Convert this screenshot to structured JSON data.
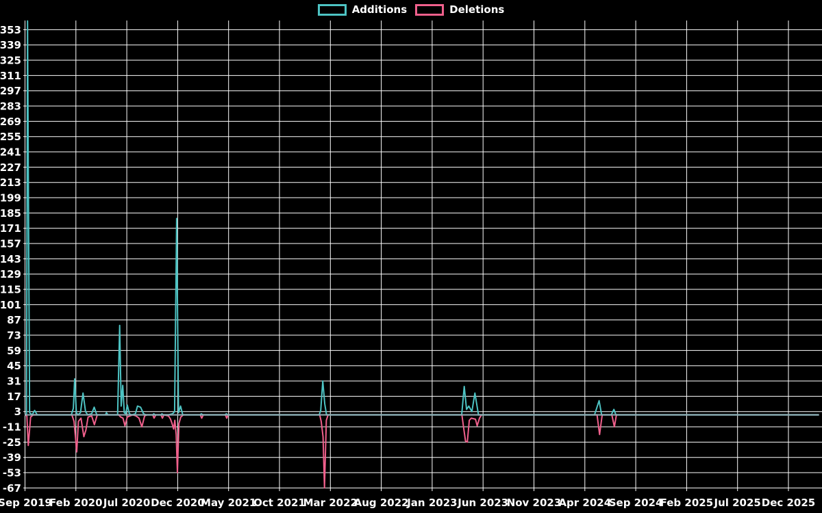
{
  "page": {
    "background": "#000000"
  },
  "legend": {
    "items": [
      {
        "label": "Additions",
        "color": "#4dc3c3"
      },
      {
        "label": "Deletions",
        "color": "#f0608c"
      }
    ]
  },
  "chart_data": {
    "type": "line",
    "title": "",
    "legend_position": "top-center",
    "grid": true,
    "colors": {
      "background": "#000000",
      "grid": "#ffffff",
      "text": "#ffffff",
      "additions": "#4dc3c3",
      "deletions": "#f0608c",
      "zero_line": "#96adb6"
    },
    "x_axis": {
      "unit": "months since Sep 2019",
      "range": [
        0,
        78
      ],
      "ticks": [
        {
          "m": 0,
          "label": "Sep 2019"
        },
        {
          "m": 5,
          "label": "Feb 2020"
        },
        {
          "m": 10,
          "label": "Jul 2020"
        },
        {
          "m": 15,
          "label": "Dec 2020"
        },
        {
          "m": 20,
          "label": "May 2021"
        },
        {
          "m": 25,
          "label": "Oct 2021"
        },
        {
          "m": 30,
          "label": "Mar 2022"
        },
        {
          "m": 35,
          "label": "Aug 2022"
        },
        {
          "m": 40,
          "label": "Jan 2023"
        },
        {
          "m": 45,
          "label": "Jun 2023"
        },
        {
          "m": 50,
          "label": "Nov 2023"
        },
        {
          "m": 55,
          "label": "Apr 2024"
        },
        {
          "m": 60,
          "label": "Sep 2024"
        },
        {
          "m": 65,
          "label": "Feb 2025"
        },
        {
          "m": 70,
          "label": "Jul 2025"
        },
        {
          "m": 75,
          "label": "Dec 2025"
        }
      ]
    },
    "y_axis": {
      "min": -67,
      "max": 353,
      "tick_step": 14,
      "ticks": [
        353,
        339,
        325,
        311,
        297,
        283,
        269,
        255,
        241,
        227,
        213,
        199,
        185,
        171,
        157,
        143,
        129,
        115,
        101,
        87,
        73,
        59,
        45,
        31,
        17,
        3,
        -11,
        -25,
        -39,
        -53,
        -67
      ]
    },
    "series": [
      {
        "name": "Additions",
        "color": "#4dc3c3",
        "points": [
          [
            0,
            0
          ],
          [
            0.15,
            1
          ],
          [
            0.25,
            361
          ],
          [
            0.45,
            2
          ],
          [
            0.7,
            0
          ],
          [
            0.95,
            4
          ],
          [
            1.2,
            0
          ],
          [
            4.55,
            0
          ],
          [
            4.75,
            6
          ],
          [
            4.88,
            33
          ],
          [
            5.05,
            2
          ],
          [
            5.2,
            0
          ],
          [
            5.45,
            2
          ],
          [
            5.7,
            20
          ],
          [
            5.95,
            3
          ],
          [
            6.15,
            0
          ],
          [
            6.55,
            1
          ],
          [
            6.8,
            7
          ],
          [
            7.05,
            0
          ],
          [
            7.9,
            0
          ],
          [
            8.0,
            2
          ],
          [
            8.15,
            0
          ],
          [
            9.1,
            0
          ],
          [
            9.3,
            82
          ],
          [
            9.45,
            8
          ],
          [
            9.6,
            27
          ],
          [
            9.75,
            2
          ],
          [
            9.9,
            1
          ],
          [
            10.05,
            9
          ],
          [
            10.25,
            1
          ],
          [
            10.5,
            0
          ],
          [
            10.85,
            1
          ],
          [
            11.05,
            8
          ],
          [
            11.35,
            7
          ],
          [
            11.65,
            1
          ],
          [
            11.9,
            0
          ],
          [
            12.55,
            0
          ],
          [
            12.65,
            1
          ],
          [
            12.8,
            0
          ],
          [
            13.35,
            0
          ],
          [
            13.45,
            1
          ],
          [
            13.6,
            0
          ],
          [
            14.1,
            0
          ],
          [
            14.5,
            1
          ],
          [
            14.7,
            3
          ],
          [
            14.9,
            180
          ],
          [
            15.08,
            2
          ],
          [
            15.28,
            8
          ],
          [
            15.5,
            0
          ],
          [
            17.2,
            0
          ],
          [
            17.32,
            1
          ],
          [
            17.48,
            0
          ],
          [
            19.65,
            0
          ],
          [
            19.78,
            1
          ],
          [
            19.92,
            0
          ],
          [
            28.9,
            0
          ],
          [
            29.05,
            4
          ],
          [
            29.25,
            31
          ],
          [
            29.45,
            10
          ],
          [
            29.62,
            0
          ],
          [
            42.9,
            0
          ],
          [
            43.15,
            26
          ],
          [
            43.38,
            5
          ],
          [
            43.6,
            8
          ],
          [
            43.9,
            3
          ],
          [
            44.2,
            20
          ],
          [
            44.55,
            0
          ],
          [
            55.95,
            0
          ],
          [
            56.4,
            13
          ],
          [
            56.65,
            0
          ],
          [
            57.6,
            0
          ],
          [
            57.85,
            5
          ],
          [
            58.05,
            0
          ],
          [
            78,
            0
          ]
        ]
      },
      {
        "name": "Deletions",
        "color": "#f0608c",
        "points": [
          [
            0,
            0
          ],
          [
            0.18,
            -1
          ],
          [
            0.32,
            -28
          ],
          [
            0.55,
            -2
          ],
          [
            0.8,
            0
          ],
          [
            4.6,
            0
          ],
          [
            4.82,
            -6
          ],
          [
            4.95,
            -20
          ],
          [
            5.08,
            -34
          ],
          [
            5.25,
            -6
          ],
          [
            5.5,
            -3
          ],
          [
            5.78,
            -20
          ],
          [
            5.98,
            -14
          ],
          [
            6.2,
            -2
          ],
          [
            6.55,
            -1
          ],
          [
            6.82,
            -9
          ],
          [
            7.1,
            0
          ],
          [
            9.2,
            0
          ],
          [
            9.4,
            -2
          ],
          [
            9.62,
            -3
          ],
          [
            9.82,
            -10
          ],
          [
            10.05,
            -2
          ],
          [
            10.3,
            -1
          ],
          [
            10.6,
            0
          ],
          [
            10.9,
            -1
          ],
          [
            11.2,
            -3
          ],
          [
            11.48,
            -11
          ],
          [
            11.75,
            -1
          ],
          [
            12.0,
            0
          ],
          [
            12.55,
            0
          ],
          [
            12.68,
            -3
          ],
          [
            12.85,
            0
          ],
          [
            13.35,
            0
          ],
          [
            13.5,
            -3
          ],
          [
            13.65,
            0
          ],
          [
            14.1,
            -1
          ],
          [
            14.3,
            -4
          ],
          [
            14.45,
            -8
          ],
          [
            14.6,
            -13
          ],
          [
            14.72,
            -5
          ],
          [
            14.85,
            -18
          ],
          [
            14.97,
            -53
          ],
          [
            15.12,
            -8
          ],
          [
            15.3,
            -2
          ],
          [
            15.55,
            0
          ],
          [
            17.22,
            0
          ],
          [
            17.36,
            -3
          ],
          [
            17.52,
            0
          ],
          [
            19.68,
            0
          ],
          [
            19.82,
            -3
          ],
          [
            19.96,
            0
          ],
          [
            28.95,
            0
          ],
          [
            29.1,
            -6
          ],
          [
            29.28,
            -20
          ],
          [
            29.42,
            -67
          ],
          [
            29.6,
            -5
          ],
          [
            29.78,
            0
          ],
          [
            42.92,
            0
          ],
          [
            43.12,
            -14
          ],
          [
            43.28,
            -24
          ],
          [
            43.45,
            -25
          ],
          [
            43.65,
            -5
          ],
          [
            43.85,
            -3
          ],
          [
            44.25,
            -4
          ],
          [
            44.42,
            -10
          ],
          [
            44.65,
            -3
          ],
          [
            44.85,
            0
          ],
          [
            56.2,
            0
          ],
          [
            56.45,
            -18
          ],
          [
            56.7,
            0
          ],
          [
            57.65,
            0
          ],
          [
            57.9,
            -11
          ],
          [
            58.1,
            0
          ],
          [
            78,
            0
          ]
        ]
      }
    ]
  }
}
